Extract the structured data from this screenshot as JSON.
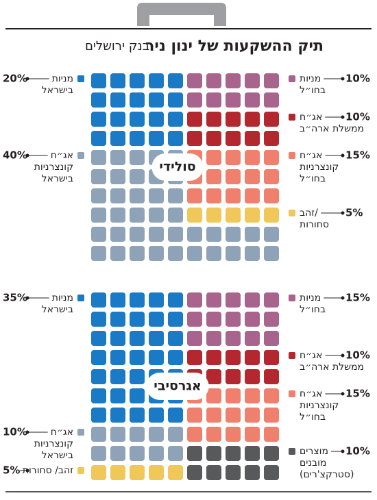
{
  "title": "תיק ההשקעות של ינון ניר",
  "subtitle": "בנק ירושלים",
  "chart_data": [
    {
      "type": "waffle",
      "label": "סולידי",
      "series": [
        {
          "name": [
            "מניות",
            "בחו״ל"
          ],
          "side": "right",
          "color": "#a8648c",
          "value": 10,
          "value_label": "10%"
        },
        {
          "name": [
            "אג״ח",
            "ממשלת ארה״ב"
          ],
          "side": "right",
          "color": "#b2282e",
          "value": 10,
          "value_label": "10%"
        },
        {
          "name": [
            "אג״ח",
            "קונצרניות",
            "בחו״ל"
          ],
          "side": "right",
          "color": "#f0806e",
          "value": 15,
          "value_label": "15%"
        },
        {
          "name": [
            "זהב/",
            "סחורות"
          ],
          "side": "right",
          "color": "#f0c85a",
          "value": 5,
          "value_label": "5%"
        },
        {
          "name": [
            "מניות",
            "בישראל"
          ],
          "side": "left",
          "color": "#1a7ac5",
          "value": 20,
          "value_label": "20%"
        },
        {
          "name": [
            "אג״ח",
            "קונצרניות",
            "בישראל"
          ],
          "side": "left",
          "color": "#8ea3b8",
          "value": 40,
          "value_label": "40%"
        }
      ]
    },
    {
      "type": "waffle",
      "label": "אגרסיבי",
      "series": [
        {
          "name": [
            "מניות",
            "בחו״ל"
          ],
          "side": "right",
          "color": "#a8648c",
          "value": 15,
          "value_label": "15%"
        },
        {
          "name": [
            "אג״ח",
            "ממשלת ארה״ב"
          ],
          "side": "right",
          "color": "#b2282e",
          "value": 10,
          "value_label": "10%"
        },
        {
          "name": [
            "אג״ח",
            "קונצרניות",
            "בחו״ל"
          ],
          "side": "right",
          "color": "#f0806e",
          "value": 15,
          "value_label": "15%"
        },
        {
          "name": [
            "מוצרים",
            "מובנים",
            "(סטרקצ'רים)"
          ],
          "side": "right",
          "color": "#58595b",
          "value": 10,
          "value_label": "10%"
        },
        {
          "name": [
            "מניות",
            "בישראל"
          ],
          "side": "left",
          "color": "#1a7ac5",
          "value": 35,
          "value_label": "35%"
        },
        {
          "name": [
            "אג״ח",
            "קונצרניות",
            "בישראל"
          ],
          "side": "left",
          "color": "#8ea3b8",
          "value": 10,
          "value_label": "10%"
        },
        {
          "name": [
            "זהב/ סחורות"
          ],
          "side": "left",
          "color": "#f0c85a",
          "value": 5,
          "value_label": "5%"
        }
      ]
    }
  ]
}
